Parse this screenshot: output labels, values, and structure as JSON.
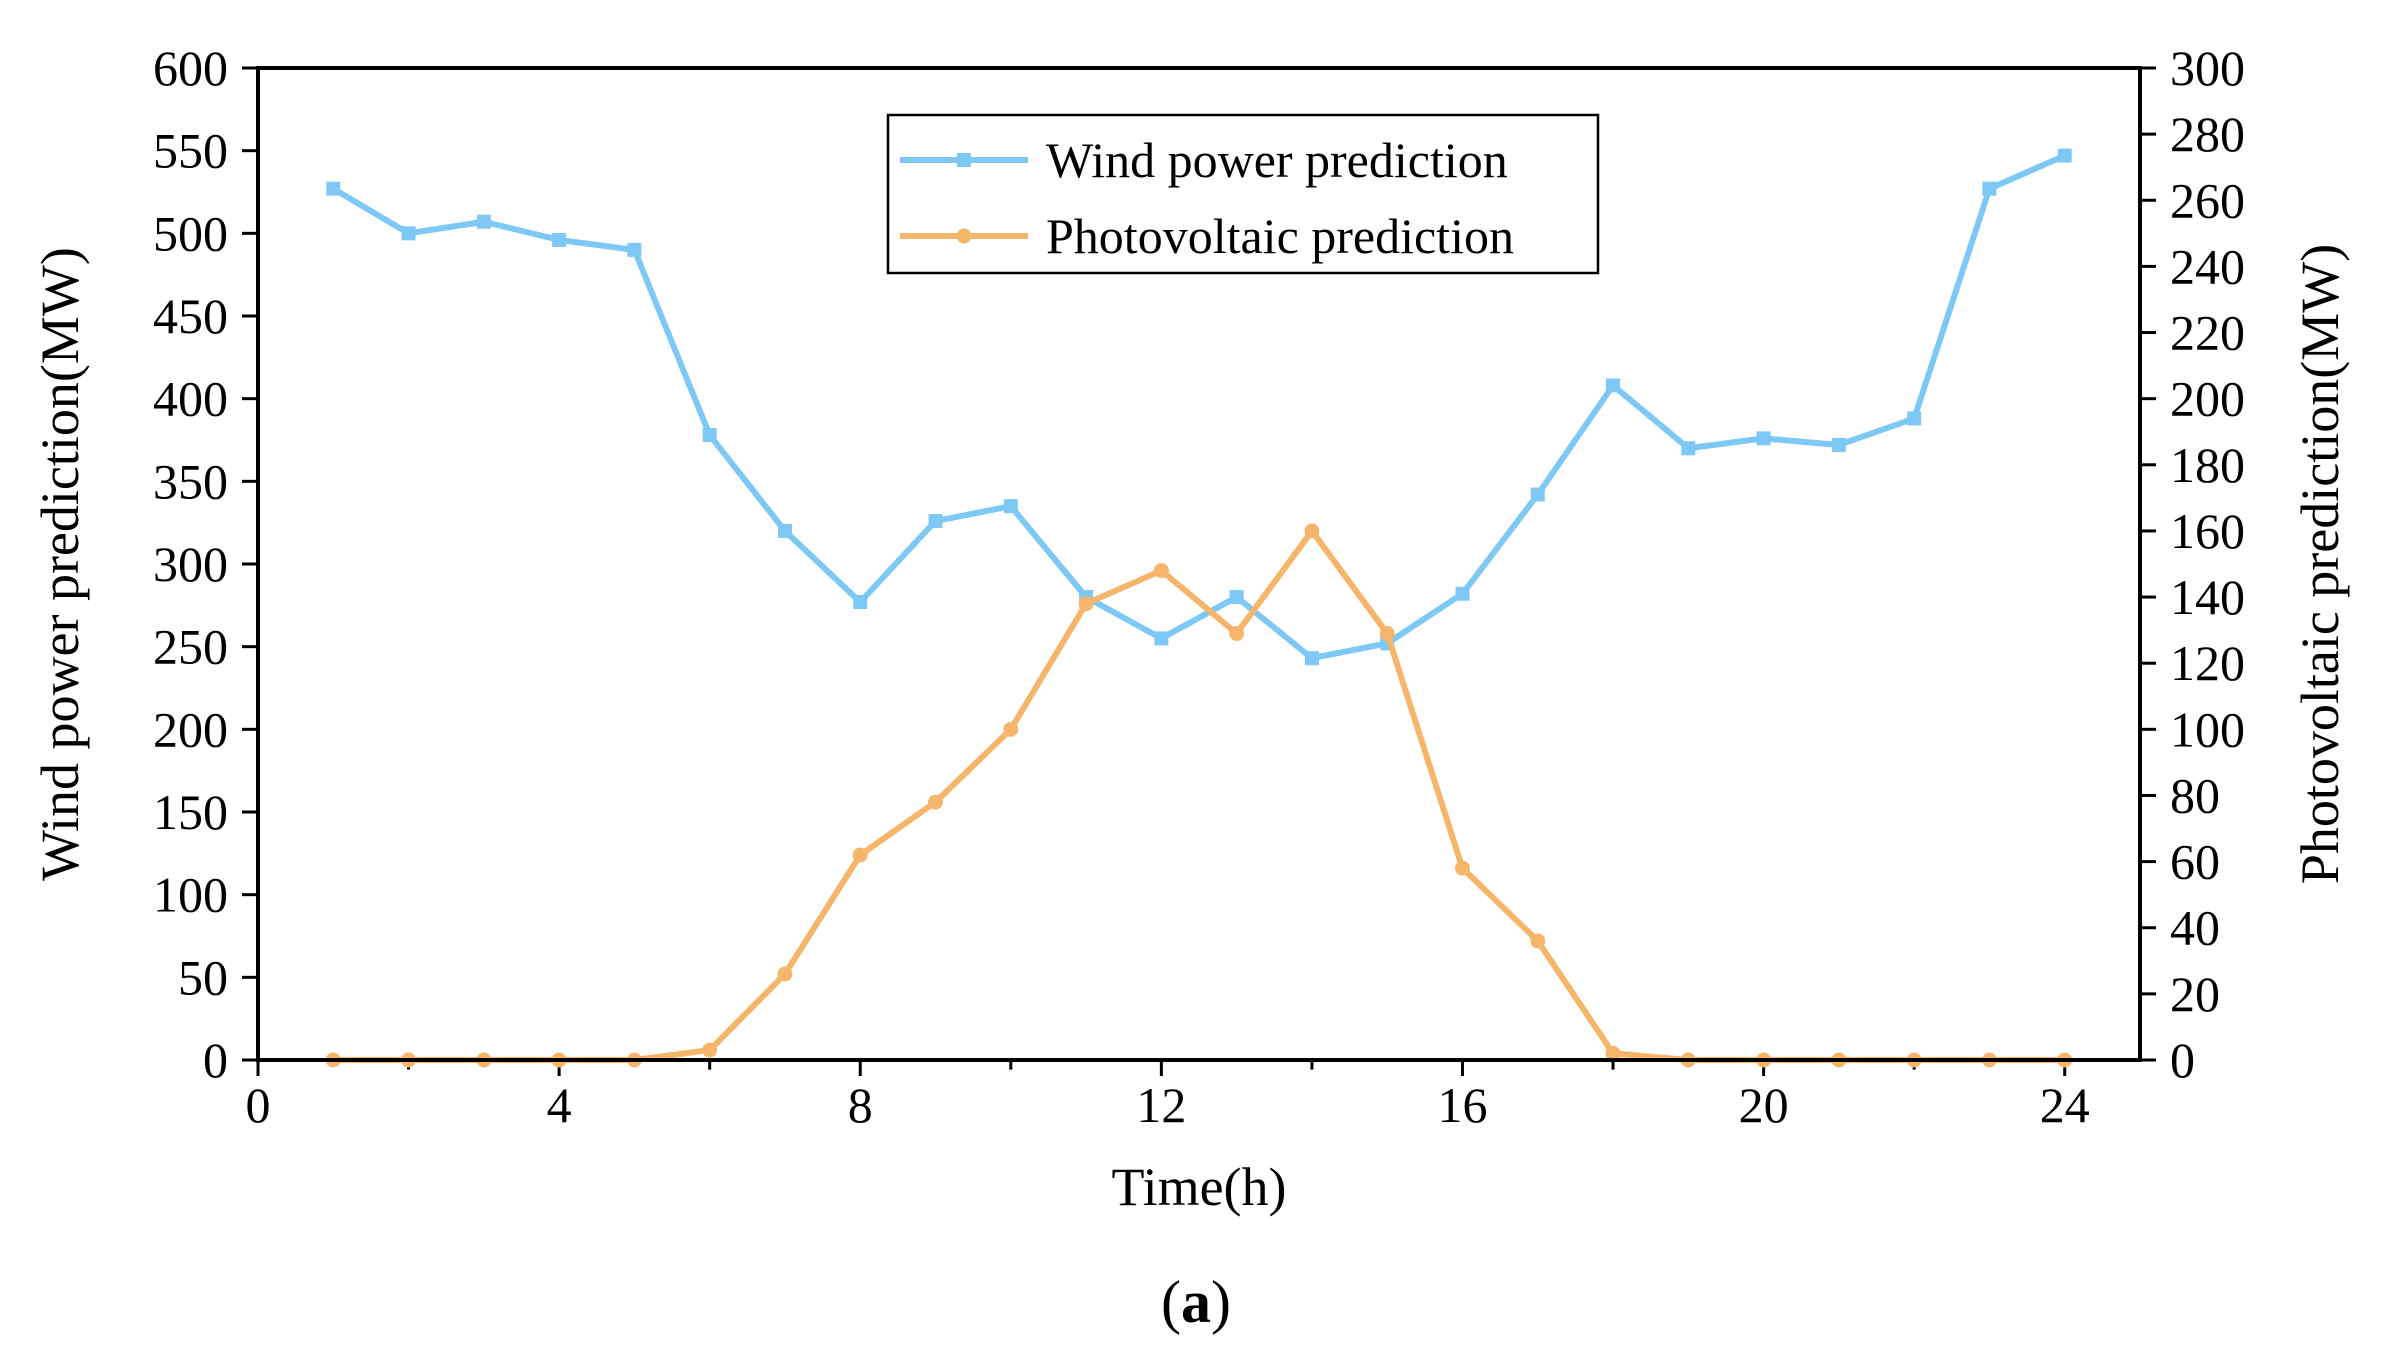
{
  "chart_data": {
    "type": "line",
    "x": [
      1,
      2,
      3,
      4,
      5,
      6,
      7,
      8,
      9,
      10,
      11,
      12,
      13,
      14,
      15,
      16,
      17,
      18,
      19,
      20,
      21,
      22,
      23,
      24
    ],
    "xticks": [
      0,
      4,
      8,
      12,
      16,
      20,
      24
    ],
    "xlim": [
      0,
      25
    ],
    "xlabel": "Time(h)",
    "left_axis": {
      "label": "Wind power prediction(MW)",
      "ylim": [
        0,
        600
      ],
      "ticks": [
        0,
        50,
        100,
        150,
        200,
        250,
        300,
        350,
        400,
        450,
        500,
        550,
        600
      ]
    },
    "right_axis": {
      "label": "Photovoltaic prediction(MW)",
      "ylim": [
        0,
        300
      ],
      "ticks": [
        0,
        20,
        40,
        60,
        80,
        100,
        120,
        140,
        160,
        180,
        200,
        220,
        240,
        260,
        280,
        300
      ]
    },
    "series": [
      {
        "name": "Wind power prediction",
        "axis": "left",
        "color": "#7dc8f5",
        "marker": "square",
        "values": [
          527,
          500,
          507,
          496,
          490,
          378,
          320,
          277,
          326,
          335,
          280,
          255,
          280,
          243,
          252,
          282,
          342,
          408,
          370,
          376,
          372,
          388,
          527,
          547
        ]
      },
      {
        "name": "Photovoltaic prediction",
        "axis": "right",
        "color": "#f5b56a",
        "marker": "circle",
        "values": [
          0,
          0,
          0,
          0,
          0,
          3,
          26,
          62,
          78,
          100,
          138,
          148,
          129,
          160,
          129,
          58,
          36,
          2,
          0,
          0,
          0,
          0,
          0,
          0
        ]
      }
    ],
    "legend_position": "top-center",
    "caption": "(a)"
  }
}
